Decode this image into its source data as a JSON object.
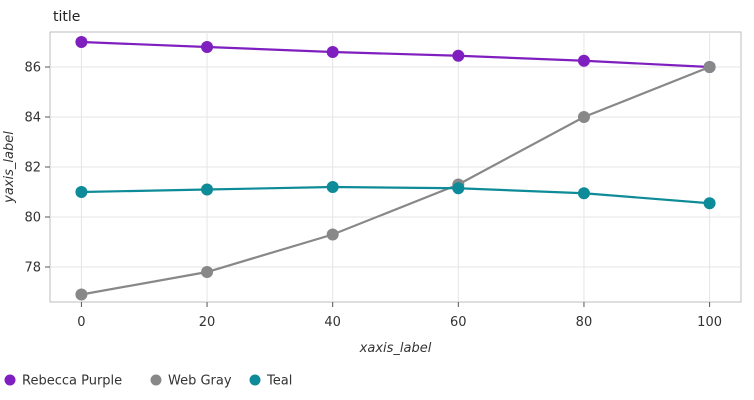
{
  "chart_data": {
    "type": "line",
    "title": "title",
    "xlabel": "xaxis_label",
    "ylabel": "yaxis_label",
    "xlim": [
      -5,
      105
    ],
    "ylim": [
      76.6,
      87.4
    ],
    "x_ticks": [
      0,
      20,
      40,
      60,
      80,
      100
    ],
    "y_ticks": [
      78,
      80,
      82,
      84,
      86
    ],
    "grid": true,
    "legend_position": "bottom",
    "series": [
      {
        "name": "Rebecca Purple",
        "color": "#7f1fbf",
        "x": [
          0,
          20,
          40,
          60,
          80,
          100
        ],
        "y": [
          87.0,
          86.8,
          86.6,
          86.45,
          86.25,
          86.0
        ]
      },
      {
        "name": "Web Gray",
        "color": "#888888",
        "x": [
          0,
          20,
          40,
          60,
          80,
          100
        ],
        "y": [
          76.9,
          77.8,
          79.3,
          81.3,
          84.0,
          86.0
        ]
      },
      {
        "name": "Teal",
        "color": "#0e8b98",
        "x": [
          0,
          20,
          40,
          60,
          80,
          100
        ],
        "y": [
          81.0,
          81.1,
          81.2,
          81.15,
          80.95,
          80.55
        ]
      }
    ]
  }
}
